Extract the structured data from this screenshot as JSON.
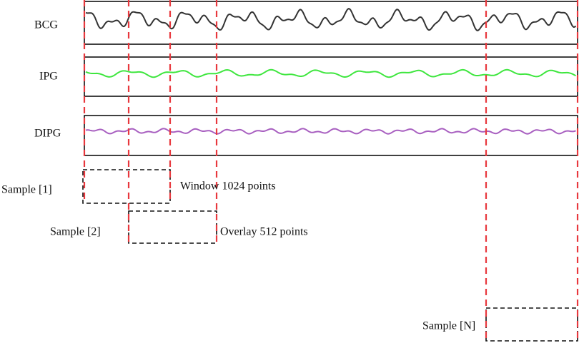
{
  "signals": [
    {
      "label": "BCG"
    },
    {
      "label": "IPG"
    },
    {
      "label": "DIPG"
    }
  ],
  "samples": [
    {
      "label": "Sample [1]"
    },
    {
      "label": "Sample [2]"
    },
    {
      "label": "Sample [N]"
    }
  ],
  "annotations": {
    "window": "Window 1024 points",
    "overlay": "Overlay 512 points"
  }
}
